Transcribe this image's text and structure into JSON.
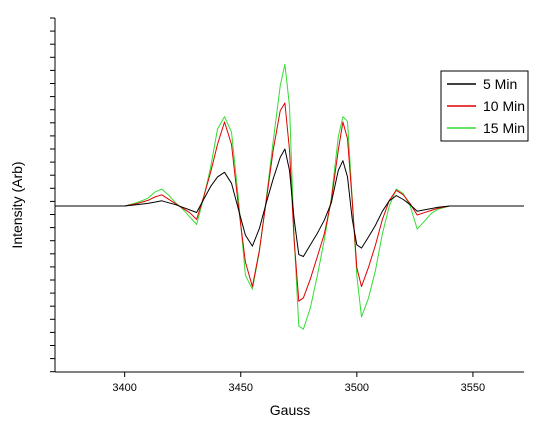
{
  "chart_data": {
    "type": "line",
    "title": "",
    "xlabel": "Gauss",
    "ylabel": "Intensity (Arb)",
    "xlim": [
      3370,
      3572
    ],
    "ylim": [
      -1.0,
      1.0
    ],
    "xticks": [
      3400,
      3450,
      3500,
      3550
    ],
    "yticks_labeled": false,
    "grid": false,
    "legend_position": "top-right",
    "series": [
      {
        "name": "5 Min",
        "color": "#000000",
        "amplitude": 0.37,
        "x": [
          3370,
          3400,
          3405,
          3410,
          3413,
          3416,
          3419,
          3422,
          3425,
          3428,
          3431,
          3434,
          3437,
          3440,
          3443,
          3446,
          3449,
          3452,
          3455,
          3458,
          3461,
          3464,
          3467,
          3469,
          3471,
          3473,
          3475,
          3477,
          3480,
          3483,
          3486,
          3489,
          3492,
          3494,
          3496,
          3498,
          3500,
          3502,
          3505,
          3508,
          3511,
          3514,
          3517,
          3520,
          3523,
          3526,
          3529,
          3532,
          3535,
          3540,
          3545,
          3550,
          3572
        ],
        "y": [
          0,
          0,
          0.02,
          0.04,
          0.06,
          0.08,
          0.05,
          0.02,
          -0.02,
          -0.06,
          -0.1,
          0.1,
          0.3,
          0.45,
          0.52,
          0.35,
          -0.05,
          -0.45,
          -0.62,
          -0.35,
          0.05,
          0.42,
          0.75,
          0.88,
          0.55,
          -0.2,
          -0.75,
          -0.78,
          -0.6,
          -0.42,
          -0.22,
          0.05,
          0.55,
          0.7,
          0.45,
          -0.2,
          -0.6,
          -0.65,
          -0.48,
          -0.3,
          -0.08,
          0.08,
          0.16,
          0.1,
          0.02,
          -0.08,
          -0.06,
          -0.04,
          -0.02,
          0,
          0,
          0,
          0
        ]
      },
      {
        "name": "10 Min",
        "color": "#e00000",
        "amplitude": 0.64,
        "x": [
          3370,
          3400,
          3405,
          3410,
          3413,
          3416,
          3419,
          3422,
          3425,
          3428,
          3431,
          3434,
          3437,
          3440,
          3443,
          3446,
          3449,
          3452,
          3455,
          3458,
          3461,
          3464,
          3467,
          3469,
          3471,
          3473,
          3475,
          3477,
          3480,
          3483,
          3486,
          3489,
          3492,
          3494,
          3496,
          3498,
          3500,
          3502,
          3505,
          3508,
          3511,
          3514,
          3517,
          3520,
          3523,
          3526,
          3529,
          3532,
          3535,
          3540,
          3545,
          3550,
          3572
        ],
        "y": [
          0,
          0,
          0.02,
          0.05,
          0.08,
          0.1,
          0.06,
          0.02,
          -0.02,
          -0.06,
          -0.12,
          0.08,
          0.3,
          0.55,
          0.75,
          0.55,
          0.0,
          -0.5,
          -0.72,
          -0.4,
          0.05,
          0.5,
          0.85,
          0.92,
          0.5,
          -0.3,
          -0.85,
          -0.82,
          -0.65,
          -0.45,
          -0.25,
          0.05,
          0.5,
          0.75,
          0.6,
          0.05,
          -0.55,
          -0.72,
          -0.55,
          -0.35,
          -0.12,
          0.05,
          0.14,
          0.1,
          0.02,
          -0.08,
          -0.06,
          -0.04,
          -0.02,
          0,
          0,
          0,
          0
        ]
      },
      {
        "name": "15 Min",
        "color": "#33dd33",
        "amplitude": 0.88,
        "x": [
          3370,
          3400,
          3405,
          3410,
          3413,
          3416,
          3419,
          3422,
          3425,
          3428,
          3431,
          3434,
          3437,
          3440,
          3443,
          3446,
          3449,
          3452,
          3455,
          3458,
          3461,
          3464,
          3467,
          3469,
          3471,
          3473,
          3475,
          3477,
          3480,
          3483,
          3486,
          3489,
          3492,
          3494,
          3496,
          3498,
          3500,
          3502,
          3505,
          3508,
          3511,
          3514,
          3517,
          3520,
          3523,
          3526,
          3529,
          3532,
          3535,
          3540,
          3545,
          3550,
          3572
        ],
        "y": [
          0,
          0,
          0.02,
          0.05,
          0.09,
          0.11,
          0.07,
          0.02,
          -0.02,
          -0.07,
          -0.12,
          0.05,
          0.25,
          0.5,
          0.58,
          0.48,
          0.05,
          -0.45,
          -0.54,
          -0.3,
          0.05,
          0.42,
          0.78,
          0.92,
          0.65,
          -0.2,
          -0.78,
          -0.8,
          -0.66,
          -0.45,
          -0.22,
          0.05,
          0.45,
          0.58,
          0.55,
          0.05,
          -0.45,
          -0.72,
          -0.6,
          -0.42,
          -0.18,
          0.0,
          0.11,
          0.08,
          0.0,
          -0.15,
          -0.1,
          -0.05,
          -0.02,
          0,
          0,
          0,
          0
        ]
      }
    ]
  }
}
